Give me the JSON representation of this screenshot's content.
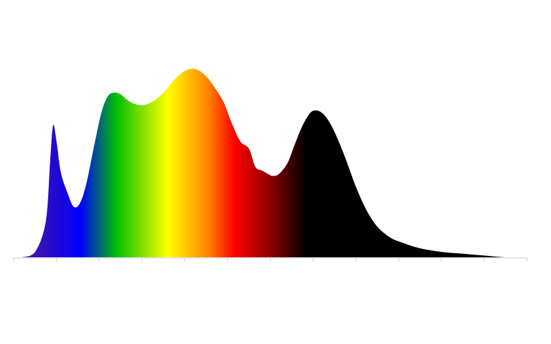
{
  "chart_data": {
    "type": "area",
    "title": "",
    "xlabel": "",
    "ylabel": "",
    "xlim": [
      0,
      12
    ],
    "ylim": [
      0,
      1
    ],
    "grid": false,
    "legend": "none",
    "x_ticks": [
      0,
      1,
      2,
      3,
      4,
      5,
      6,
      7,
      8,
      9,
      10,
      11,
      12
    ],
    "gradient_stops": [
      {
        "offset": 0.0,
        "color": "#5a1a8a"
      },
      {
        "offset": 0.13,
        "color": "#0000ff"
      },
      {
        "offset": 0.2,
        "color": "#00c000"
      },
      {
        "offset": 0.3,
        "color": "#ffff00"
      },
      {
        "offset": 0.38,
        "color": "#ff8000"
      },
      {
        "offset": 0.43,
        "color": "#ff0000"
      },
      {
        "offset": 0.5,
        "color": "#8b0000"
      },
      {
        "offset": 0.57,
        "color": "#000000"
      },
      {
        "offset": 1.0,
        "color": "#000000"
      }
    ],
    "series": [
      {
        "x": [
          0.2,
          0.5,
          0.75,
          0.85,
          0.92,
          1.0,
          1.1,
          1.25,
          1.4,
          1.55,
          1.7,
          1.9,
          2.05,
          2.2,
          2.35,
          2.5,
          2.65,
          2.8,
          3.0,
          3.25,
          3.5,
          3.75,
          4.0,
          4.25,
          4.5,
          4.75,
          4.92,
          5.1,
          5.3,
          5.5,
          5.65,
          5.8,
          5.95,
          6.05,
          6.2,
          6.4,
          6.55,
          6.7,
          6.85,
          7.0,
          7.2,
          7.4,
          7.6,
          7.8,
          8.0,
          8.25,
          8.5,
          8.8,
          9.1,
          9.5,
          10.0,
          10.5,
          11.0,
          11.5,
          12.0
        ],
        "y": [
          0.0,
          0.03,
          0.2,
          0.53,
          0.73,
          0.64,
          0.47,
          0.36,
          0.28,
          0.3,
          0.41,
          0.64,
          0.8,
          0.89,
          0.91,
          0.9,
          0.87,
          0.85,
          0.84,
          0.86,
          0.91,
          0.98,
          1.03,
          1.04,
          1.0,
          0.92,
          0.85,
          0.74,
          0.64,
          0.6,
          0.5,
          0.48,
          0.46,
          0.45,
          0.46,
          0.52,
          0.61,
          0.7,
          0.77,
          0.81,
          0.8,
          0.74,
          0.64,
          0.52,
          0.39,
          0.26,
          0.17,
          0.11,
          0.08,
          0.05,
          0.03,
          0.02,
          0.01,
          0.0,
          0.0
        ]
      }
    ]
  }
}
